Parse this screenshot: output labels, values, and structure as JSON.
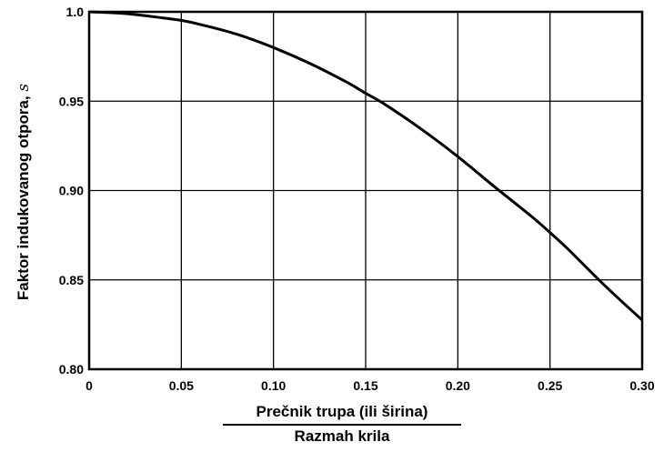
{
  "chart_data": {
    "type": "line",
    "xlabel_numerator": "Prečnik trupa (ili širina)",
    "xlabel_denominator": "Razmah krila",
    "ylabel": "Faktor indukovanog otpora,",
    "ylabel_symbol": "s",
    "xlim": [
      0,
      0.3
    ],
    "ylim": [
      0.8,
      1.0
    ],
    "xticks": [
      "0",
      "0.05",
      "0.10",
      "0.15",
      "0.20",
      "0.25",
      "0.30"
    ],
    "yticks": [
      "0.80",
      "0.85",
      "0.90",
      "0.95",
      "1.0"
    ],
    "grid": true,
    "series": [
      {
        "x": [
          0,
          0.02,
          0.04,
          0.05,
          0.06,
          0.08,
          0.1,
          0.12,
          0.14,
          0.15,
          0.16,
          0.18,
          0.2,
          0.22,
          0.24,
          0.25,
          0.26,
          0.28,
          0.3
        ],
        "y": [
          1.0,
          0.999,
          0.9966,
          0.9952,
          0.993,
          0.9875,
          0.98,
          0.971,
          0.9605,
          0.9544,
          0.9485,
          0.9345,
          0.919,
          0.902,
          0.8855,
          0.8765,
          0.867,
          0.8465,
          0.8275
        ]
      }
    ]
  }
}
